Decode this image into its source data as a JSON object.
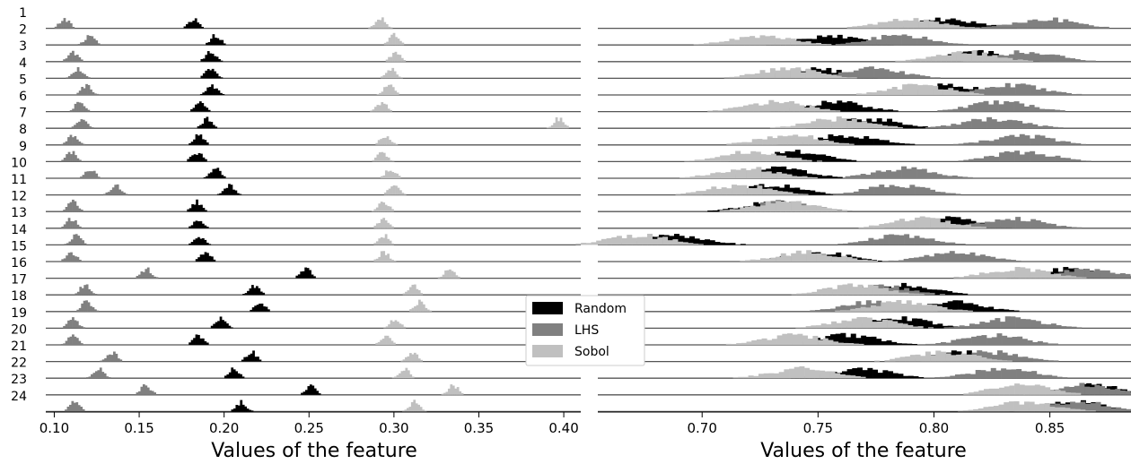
{
  "chart_data": [
    {
      "type": "ridgeline-histogram",
      "panel": "left",
      "xlabel": "Values of the feature",
      "xlim": [
        0.095,
        0.41
      ],
      "xticks": [
        "0.10",
        "0.15",
        "0.20",
        "0.25",
        "0.30",
        "0.35",
        "0.40"
      ],
      "xtick_values": [
        0.1,
        0.15,
        0.2,
        0.25,
        0.3,
        0.35,
        0.4
      ],
      "row_labels": [
        "1",
        "2",
        "3",
        "4",
        "5",
        "6",
        "7",
        "8",
        "9",
        "10",
        "11",
        "12",
        "13",
        "14",
        "15",
        "16",
        "17",
        "18",
        "19",
        "20",
        "21",
        "22",
        "23",
        "24"
      ],
      "series": [
        {
          "name": "LHS",
          "color": "#808080",
          "centers": [
            0.106,
            0.121,
            0.111,
            0.114,
            0.119,
            0.115,
            0.116,
            0.111,
            0.11,
            0.121,
            0.136,
            0.111,
            0.11,
            0.113,
            0.11,
            0.154,
            0.118,
            0.119,
            0.111,
            0.111,
            0.134,
            0.126,
            0.154,
            0.112
          ]
        },
        {
          "name": "Random",
          "color": "#000000",
          "centers": [
            0.182,
            0.195,
            0.192,
            0.192,
            0.193,
            0.186,
            0.19,
            0.185,
            0.184,
            0.195,
            0.203,
            0.184,
            0.185,
            0.185,
            0.189,
            0.248,
            0.218,
            0.221,
            0.198,
            0.185,
            0.216,
            0.206,
            0.251,
            0.21
          ]
        },
        {
          "name": "Sobol",
          "color": "#c0c0c0",
          "centers": [
            0.292,
            0.3,
            0.301,
            0.298,
            0.297,
            0.293,
            0.397,
            0.295,
            0.293,
            0.298,
            0.3,
            0.294,
            0.294,
            0.294,
            0.294,
            0.333,
            0.311,
            0.315,
            0.301,
            0.295,
            0.311,
            0.306,
            0.335,
            0.312
          ]
        }
      ]
    },
    {
      "type": "ridgeline-histogram",
      "panel": "right",
      "xlabel": "Values of the feature",
      "xlim": [
        0.655,
        0.885
      ],
      "xticks": [
        "0.70",
        "0.75",
        "0.80",
        "0.85"
      ],
      "xtick_values": [
        0.7,
        0.75,
        0.8,
        0.85
      ],
      "series": [
        {
          "name": "Random",
          "color": "#000000",
          "centers": [
            0.806,
            0.755,
            0.818,
            0.748,
            0.807,
            0.757,
            0.772,
            0.762,
            0.739,
            0.733,
            0.73,
            0.732,
            0.806,
            0.689,
            0.75,
            0.859,
            0.787,
            0.807,
            0.785,
            0.763,
            0.813,
            0.768,
            0.869,
            0.86
          ]
        },
        {
          "name": "LHS",
          "color": "#808080",
          "centers": [
            0.848,
            0.785,
            0.84,
            0.773,
            0.834,
            0.829,
            0.826,
            0.838,
            0.838,
            0.787,
            0.784,
            0.735,
            0.834,
            0.786,
            0.81,
            0.866,
            0.775,
            0.774,
            0.834,
            0.826,
            0.824,
            0.83,
            0.866,
            0.862
          ]
        },
        {
          "name": "Sobol",
          "color": "#c0c0c0",
          "centers": [
            0.79,
            0.726,
            0.813,
            0.737,
            0.794,
            0.732,
            0.759,
            0.738,
            0.722,
            0.72,
            0.716,
            0.735,
            0.795,
            0.673,
            0.746,
            0.836,
            0.766,
            0.787,
            0.77,
            0.74,
            0.804,
            0.743,
            0.838,
            0.84
          ]
        }
      ]
    }
  ],
  "legend": {
    "entries": [
      {
        "label": "Random",
        "color": "#000000"
      },
      {
        "label": "LHS",
        "color": "#808080"
      },
      {
        "label": "Sobol",
        "color": "#c0c0c0"
      }
    ]
  }
}
